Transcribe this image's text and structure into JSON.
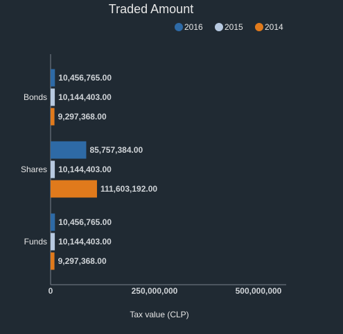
{
  "chart_data": {
    "type": "bar",
    "orientation": "horizontal",
    "title": "Traded Amount",
    "xlabel": "Tax value (CLP)",
    "ylabel": "",
    "xlim": [
      0,
      500000000
    ],
    "x_ticks": [
      {
        "value": 0,
        "label": "0"
      },
      {
        "value": 250000000,
        "label": "250,000,000"
      },
      {
        "value": 500000000,
        "label": "500,000,000"
      }
    ],
    "legend_position": "top-right",
    "grid": false,
    "categories": [
      "Bonds",
      "Shares",
      "Funds"
    ],
    "series": [
      {
        "name": "2016",
        "color": "#2e6aa6",
        "values": [
          10456765,
          85757384,
          10456765
        ],
        "labels": [
          "10,456,765.00",
          "85,757,384.00",
          "10,456,765.00"
        ]
      },
      {
        "name": "2015",
        "color": "#b7c9e0",
        "values": [
          10144403,
          10144403,
          10144403
        ],
        "labels": [
          "10,144,403.00",
          "10,144,403.00",
          "10,144,403.00"
        ]
      },
      {
        "name": "2014",
        "color": "#e07a1c",
        "values": [
          9297368,
          111603192,
          9297368
        ],
        "labels": [
          "9,297,368.00",
          "111,603,192.00",
          "9,297,368.00"
        ]
      }
    ]
  }
}
